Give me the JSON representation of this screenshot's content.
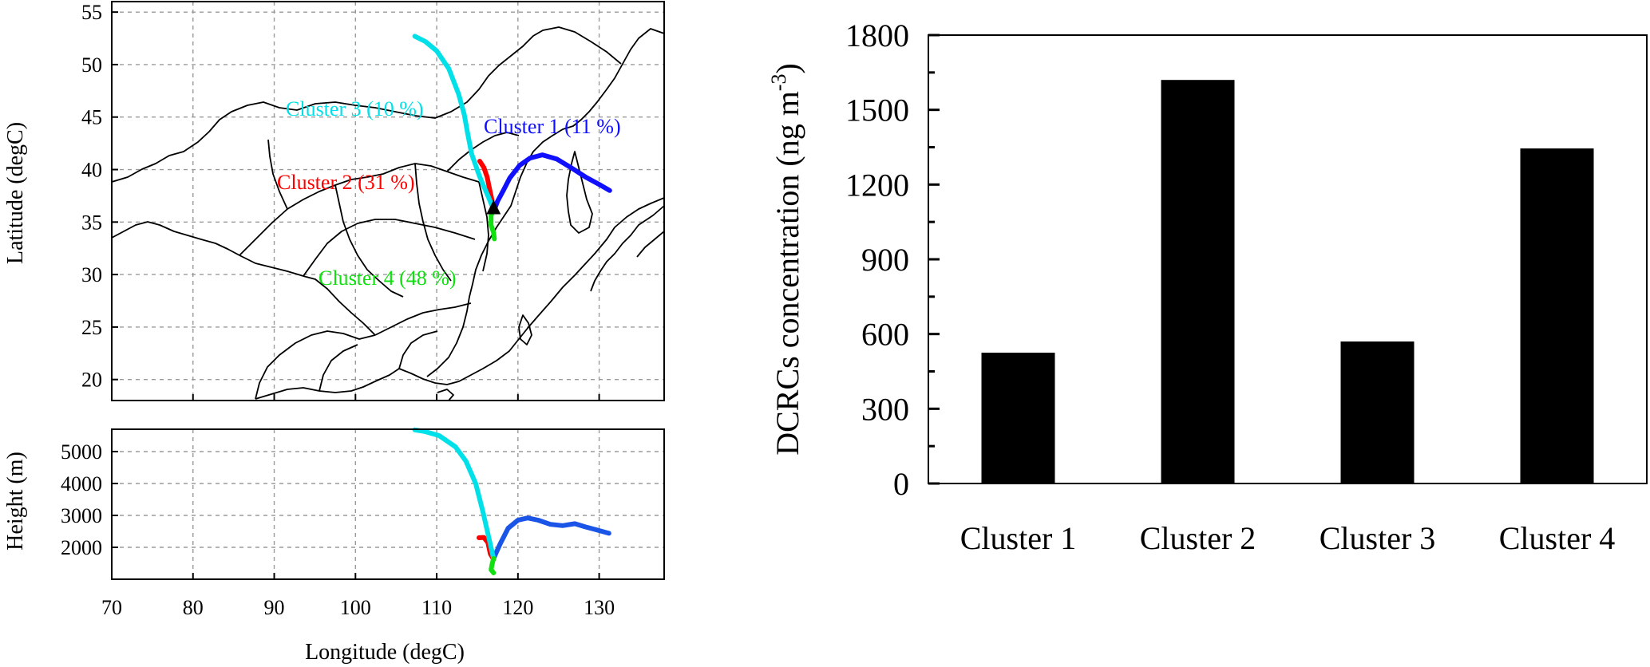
{
  "chart_data": [
    {
      "type": "line",
      "panel": "trajectory-map",
      "xlabel": "Longitude (degC)",
      "ylabel": "Latitude (degC)",
      "xlim": [
        70,
        138
      ],
      "ylim": [
        18,
        56
      ],
      "x_ticks": [
        70,
        80,
        90,
        100,
        110,
        120,
        130
      ],
      "y_ticks": [
        20,
        25,
        30,
        35,
        40,
        45,
        50,
        55
      ],
      "grid": true,
      "receptor": {
        "lon": 117,
        "lat": 36.2
      },
      "series": [
        {
          "name": "Cluster 1 (11 %)",
          "color": "#1010ff",
          "points": [
            [
              117,
              36
            ],
            [
              117.5,
              37
            ],
            [
              118.2,
              38
            ],
            [
              119,
              39.2
            ],
            [
              120.2,
              40.4
            ],
            [
              121.5,
              41.1
            ],
            [
              123,
              41.4
            ],
            [
              124.8,
              41
            ],
            [
              126.5,
              40.2
            ],
            [
              128.3,
              39.3
            ],
            [
              130.2,
              38.5
            ],
            [
              131.3,
              38
            ]
          ]
        },
        {
          "name": "Cluster 2 (31 %)",
          "color": "#ff0000",
          "points": [
            [
              117,
              36.2
            ],
            [
              116.8,
              37.1
            ],
            [
              116.5,
              38.2
            ],
            [
              116.2,
              39.3
            ],
            [
              115.8,
              40.2
            ],
            [
              115.3,
              40.8
            ]
          ]
        },
        {
          "name": "Cluster 3 (10 %)",
          "color": "#00e0e8",
          "points": [
            [
              117,
              36.2
            ],
            [
              116.3,
              37.5
            ],
            [
              115.3,
              39.3
            ],
            [
              114.3,
              41.5
            ],
            [
              113.8,
              43.5
            ],
            [
              113.4,
              45.2
            ],
            [
              112.7,
              47.2
            ],
            [
              111.5,
              49.6
            ],
            [
              110,
              51.3
            ],
            [
              108.6,
              52.2
            ],
            [
              107.3,
              52.7
            ]
          ]
        },
        {
          "name": "Cluster 4 (48 %)",
          "color": "#10e010",
          "points": [
            [
              117,
              36.3
            ],
            [
              116.7,
              35.6
            ],
            [
              116.7,
              34.7
            ],
            [
              117,
              34
            ],
            [
              117.1,
              33.4
            ]
          ]
        }
      ]
    },
    {
      "type": "line",
      "panel": "trajectory-height",
      "xlabel": "Longitude (degC)",
      "ylabel": "Height (m)",
      "xlim": [
        70,
        138
      ],
      "ylim": [
        1000,
        5700
      ],
      "x_ticks": [
        70,
        80,
        90,
        100,
        110,
        120,
        130
      ],
      "y_ticks": [
        2000,
        3000,
        4000,
        5000
      ],
      "grid": true,
      "series": [
        {
          "name": "Cluster 1 (11 %)",
          "color": "#1a55e8",
          "points": [
            [
              117,
              1650
            ],
            [
              117.8,
              2100
            ],
            [
              118.8,
              2600
            ],
            [
              120,
              2850
            ],
            [
              121.2,
              2920
            ],
            [
              122.5,
              2850
            ],
            [
              124,
              2720
            ],
            [
              125.5,
              2680
            ],
            [
              127,
              2740
            ],
            [
              128.3,
              2640
            ],
            [
              129.5,
              2560
            ],
            [
              131.2,
              2440
            ]
          ]
        },
        {
          "name": "Cluster 2 (31 %)",
          "color": "#ff0000",
          "points": [
            [
              117,
              1620
            ],
            [
              116.6,
              1800
            ],
            [
              116.3,
              2150
            ],
            [
              115.8,
              2310
            ],
            [
              115.2,
              2300
            ]
          ]
        },
        {
          "name": "Cluster 3 (10 %)",
          "color": "#00e0e8",
          "points": [
            [
              117,
              1650
            ],
            [
              116.6,
              2100
            ],
            [
              115.7,
              3100
            ],
            [
              114.8,
              4000
            ],
            [
              113.6,
              4700
            ],
            [
              112.3,
              5150
            ],
            [
              110.3,
              5500
            ],
            [
              108.5,
              5630
            ],
            [
              107.3,
              5680
            ]
          ]
        },
        {
          "name": "Cluster 4 (48 %)",
          "color": "#10e010",
          "points": [
            [
              117,
              1650
            ],
            [
              116.8,
              1450
            ],
            [
              116.7,
              1300
            ],
            [
              117,
              1200
            ]
          ]
        }
      ]
    },
    {
      "type": "bar",
      "panel": "concentration-bars",
      "categories": [
        "Cluster 1",
        "Cluster 2",
        "Cluster 3",
        "Cluster 4"
      ],
      "values": [
        525,
        1620,
        570,
        1345
      ],
      "ylabel_main": "DCRCs concentration (ng m",
      "ylabel_sup": "-3",
      "ylabel_close": ")",
      "ylim": [
        0,
        1800
      ],
      "y_ticks": [
        0,
        300,
        600,
        900,
        1200,
        1500,
        1800
      ],
      "bar_color": "#000000"
    }
  ]
}
